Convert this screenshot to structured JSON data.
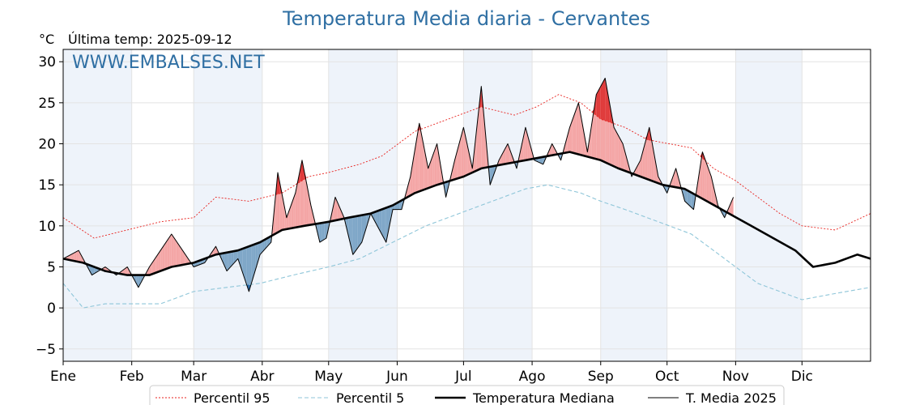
{
  "chart_data": {
    "type": "line",
    "title": "Temperatura Media diaria - Cervantes",
    "subtitle_unit": "°C",
    "subtitle_last": "Última temp: 2025-09-12",
    "watermark": "WWW.EMBALSES.NET",
    "ylim": [
      -6.5,
      31.5
    ],
    "yticks": [
      -5,
      0,
      5,
      10,
      15,
      20,
      25,
      30
    ],
    "xlim": [
      1,
      366
    ],
    "month_labels": [
      "Ene",
      "Feb",
      "Mar",
      "Abr",
      "May",
      "Jun",
      "Jul",
      "Ago",
      "Sep",
      "Oct",
      "Nov",
      "Dic"
    ],
    "month_starts": [
      1,
      32,
      60,
      91,
      121,
      152,
      182,
      213,
      244,
      274,
      305,
      335
    ],
    "grid": true,
    "legend_position": "bottom",
    "colors": {
      "p95": "#e8211d",
      "p5": "#8fc6d9",
      "median": "#000000",
      "current": "#000000",
      "above": "#f4a6a6",
      "above_dark": "#e03b3b",
      "below": "#7fa7c8",
      "below_dark": "#2a6aa8",
      "shade": "#eef3fa"
    },
    "series": [
      {
        "name": "Percentil 95",
        "key": "p95",
        "style": "dotted",
        "points": [
          [
            1,
            11
          ],
          [
            15,
            8.5
          ],
          [
            30,
            9.5
          ],
          [
            45,
            10.5
          ],
          [
            60,
            11
          ],
          [
            70,
            13.5
          ],
          [
            85,
            13
          ],
          [
            100,
            14
          ],
          [
            112,
            16
          ],
          [
            121,
            16.5
          ],
          [
            135,
            17.5
          ],
          [
            145,
            18.5
          ],
          [
            160,
            21.5
          ],
          [
            175,
            23
          ],
          [
            190,
            24.5
          ],
          [
            205,
            23.5
          ],
          [
            215,
            24.5
          ],
          [
            225,
            26
          ],
          [
            235,
            25
          ],
          [
            244,
            23
          ],
          [
            255,
            22
          ],
          [
            265,
            20.5
          ],
          [
            275,
            20
          ],
          [
            285,
            19.5
          ],
          [
            295,
            17
          ],
          [
            305,
            15.5
          ],
          [
            315,
            13.5
          ],
          [
            325,
            11.5
          ],
          [
            335,
            10
          ],
          [
            350,
            9.5
          ],
          [
            366,
            11.5
          ]
        ]
      },
      {
        "name": "Percentil 5",
        "key": "p5",
        "style": "dashed",
        "points": [
          [
            1,
            3
          ],
          [
            10,
            0
          ],
          [
            20,
            0.5
          ],
          [
            30,
            0.5
          ],
          [
            45,
            0.5
          ],
          [
            60,
            2
          ],
          [
            75,
            2.5
          ],
          [
            90,
            3
          ],
          [
            105,
            4
          ],
          [
            121,
            5
          ],
          [
            135,
            6
          ],
          [
            150,
            8
          ],
          [
            165,
            10
          ],
          [
            180,
            11.5
          ],
          [
            195,
            13
          ],
          [
            210,
            14.5
          ],
          [
            220,
            15
          ],
          [
            235,
            14
          ],
          [
            244,
            13
          ],
          [
            255,
            12
          ],
          [
            265,
            11
          ],
          [
            275,
            10
          ],
          [
            285,
            9
          ],
          [
            295,
            7
          ],
          [
            305,
            5
          ],
          [
            315,
            3
          ],
          [
            325,
            2
          ],
          [
            335,
            1
          ],
          [
            345,
            1.5
          ],
          [
            355,
            2
          ],
          [
            366,
            2.5
          ]
        ]
      },
      {
        "name": "Temperatura Mediana",
        "key": "median",
        "style": "thick",
        "points": [
          [
            1,
            6
          ],
          [
            10,
            5.5
          ],
          [
            20,
            4.5
          ],
          [
            30,
            4
          ],
          [
            40,
            4
          ],
          [
            50,
            5
          ],
          [
            60,
            5.5
          ],
          [
            70,
            6.5
          ],
          [
            80,
            7
          ],
          [
            90,
            8
          ],
          [
            100,
            9.5
          ],
          [
            110,
            10
          ],
          [
            121,
            10.5
          ],
          [
            130,
            11
          ],
          [
            140,
            11.5
          ],
          [
            150,
            12.5
          ],
          [
            160,
            14
          ],
          [
            170,
            15
          ],
          [
            182,
            16
          ],
          [
            190,
            17
          ],
          [
            200,
            17.5
          ],
          [
            210,
            18
          ],
          [
            220,
            18.5
          ],
          [
            230,
            19
          ],
          [
            244,
            18
          ],
          [
            252,
            17
          ],
          [
            262,
            16
          ],
          [
            272,
            15
          ],
          [
            282,
            14.5
          ],
          [
            292,
            13
          ],
          [
            302,
            11.5
          ],
          [
            312,
            10
          ],
          [
            322,
            8.5
          ],
          [
            332,
            7
          ],
          [
            340,
            5
          ],
          [
            350,
            5.5
          ],
          [
            360,
            6.5
          ],
          [
            366,
            6
          ]
        ]
      },
      {
        "name": "T. Media 2025",
        "key": "current",
        "style": "thin",
        "points": [
          [
            1,
            6
          ],
          [
            8,
            7
          ],
          [
            14,
            4
          ],
          [
            20,
            5
          ],
          [
            25,
            4
          ],
          [
            30,
            5
          ],
          [
            35,
            2.5
          ],
          [
            40,
            5
          ],
          [
            45,
            7
          ],
          [
            50,
            9
          ],
          [
            55,
            7
          ],
          [
            60,
            5
          ],
          [
            65,
            5.5
          ],
          [
            70,
            7.5
          ],
          [
            75,
            4.5
          ],
          [
            80,
            6
          ],
          [
            85,
            2
          ],
          [
            90,
            6.5
          ],
          [
            95,
            8
          ],
          [
            98,
            16.5
          ],
          [
            102,
            11
          ],
          [
            106,
            14
          ],
          [
            109,
            18
          ],
          [
            113,
            12.5
          ],
          [
            117,
            8
          ],
          [
            120,
            8.5
          ],
          [
            124,
            13.5
          ],
          [
            128,
            11
          ],
          [
            132,
            6.5
          ],
          [
            136,
            8
          ],
          [
            140,
            11.5
          ],
          [
            144,
            9.5
          ],
          [
            147,
            8
          ],
          [
            150,
            12
          ],
          [
            154,
            12
          ],
          [
            158,
            16
          ],
          [
            162,
            22.5
          ],
          [
            166,
            17
          ],
          [
            170,
            20
          ],
          [
            174,
            13.5
          ],
          [
            178,
            18
          ],
          [
            182,
            22
          ],
          [
            186,
            17
          ],
          [
            190,
            27
          ],
          [
            194,
            15
          ],
          [
            198,
            18
          ],
          [
            202,
            20
          ],
          [
            206,
            17
          ],
          [
            210,
            22
          ],
          [
            214,
            18
          ],
          [
            218,
            17.5
          ],
          [
            222,
            20
          ],
          [
            226,
            18
          ],
          [
            230,
            22
          ],
          [
            234,
            25
          ],
          [
            238,
            19
          ],
          [
            242,
            26
          ],
          [
            246,
            28
          ],
          [
            250,
            22
          ],
          [
            254,
            20
          ],
          [
            258,
            16
          ],
          [
            262,
            18
          ],
          [
            266,
            22
          ],
          [
            270,
            16
          ],
          [
            274,
            14
          ],
          [
            278,
            17
          ],
          [
            282,
            13
          ],
          [
            286,
            12
          ],
          [
            290,
            19
          ],
          [
            294,
            16
          ],
          [
            297,
            12.5
          ],
          [
            300,
            11
          ],
          [
            304,
            13.5
          ]
        ]
      }
    ],
    "legend": [
      "Percentil 95",
      "Percentil 5",
      "Temperatura Mediana",
      "T. Media 2025"
    ]
  }
}
